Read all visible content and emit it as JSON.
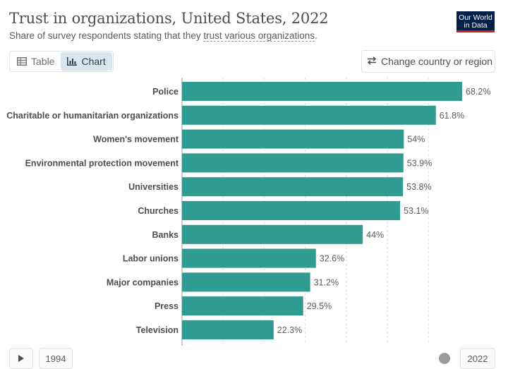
{
  "header": {
    "title": "Trust in organizations, United States, 2022",
    "subtitle_prefix": "Share of survey respondents stating that they ",
    "subtitle_link": "trust various organizations",
    "subtitle_suffix": ".",
    "logo_line1": "Our World",
    "logo_line2": "in Data"
  },
  "tabs": [
    {
      "label": "Table",
      "icon": "table-icon",
      "active": false
    },
    {
      "label": "Chart",
      "icon": "bar-chart-icon",
      "active": true
    }
  ],
  "change_button": {
    "label": "Change country or region",
    "icon": "swap-arrows-icon"
  },
  "timeline": {
    "start_label": "1994",
    "end_label": "2022",
    "play_icon": "play-icon"
  },
  "colors": {
    "bar": "#2f9b91",
    "grid": "#dddddd",
    "label": "#4d4d4d",
    "value": "#5b5b5b"
  },
  "chart_data": {
    "type": "bar",
    "orientation": "horizontal",
    "categories": [
      "Police",
      "Charitable or humanitarian organizations",
      "Women's movement",
      "Environmental protection movement",
      "Universities",
      "Churches",
      "Banks",
      "Labor unions",
      "Major companies",
      "Press",
      "Television"
    ],
    "values": [
      68.2,
      61.8,
      54,
      53.9,
      53.8,
      53.1,
      44,
      32.6,
      31.2,
      29.5,
      22.3
    ],
    "value_labels": [
      "68.2%",
      "61.8%",
      "54%",
      "53.9%",
      "53.8%",
      "53.1%",
      "44%",
      "32.6%",
      "31.2%",
      "29.5%",
      "22.3%"
    ],
    "unit": "%",
    "xlim": [
      0,
      68.2
    ],
    "grid": true,
    "title": "Trust in organizations, United States, 2022"
  }
}
